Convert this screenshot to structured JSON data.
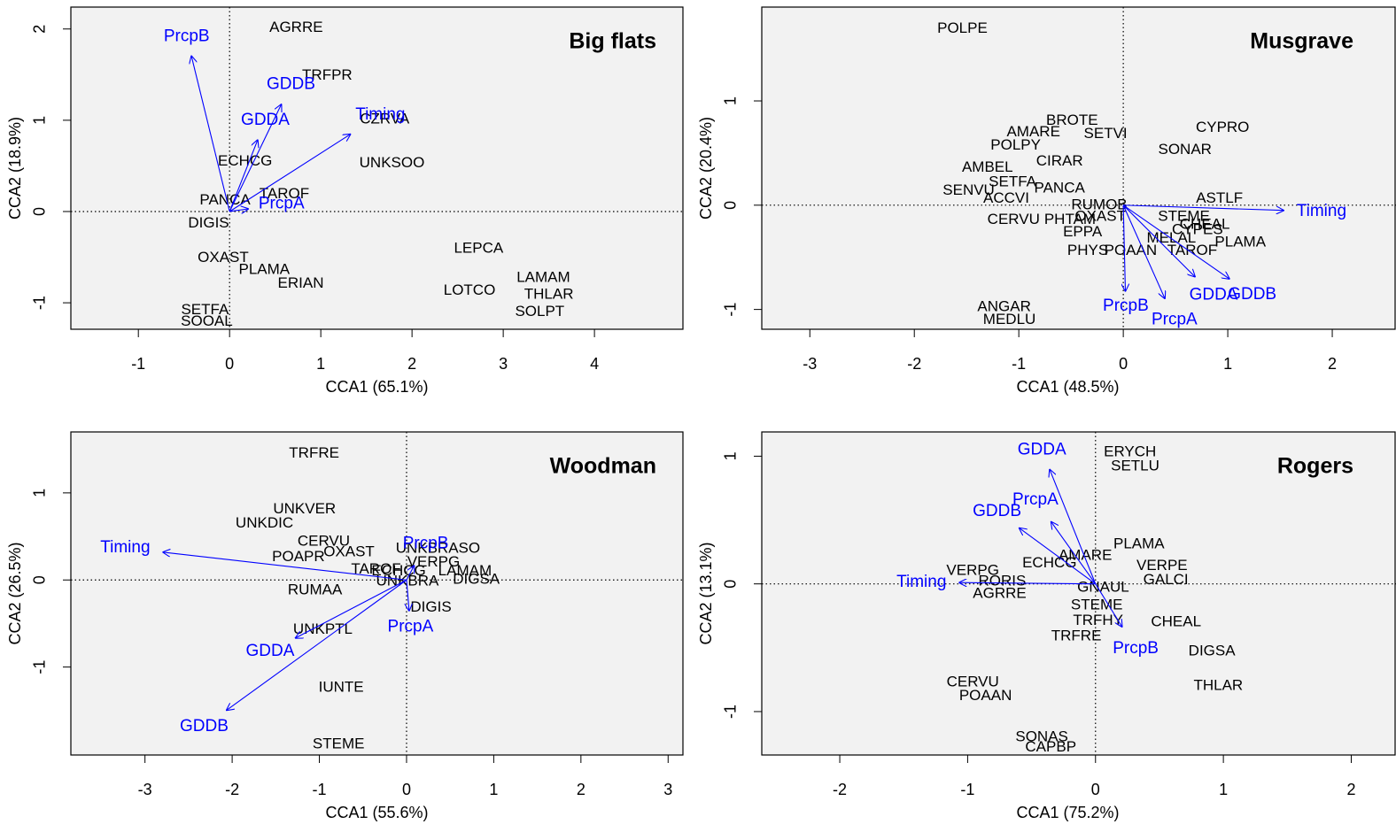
{
  "chart_data": [
    {
      "type": "biplot",
      "title": "Big flats",
      "xlabel": "CCA1 (65.1%)",
      "ylabel": "CCA2 (18.9%)",
      "xlim": [
        -1.74,
        4.97
      ],
      "ylim": [
        -1.29,
        2.24
      ],
      "xticks": [
        -1,
        0,
        1,
        2,
        3,
        4
      ],
      "yticks": [
        -1,
        0,
        1,
        2
      ],
      "point_color": "#000000",
      "vector_color": "#0000ff",
      "points": [
        {
          "label": "AGRRE",
          "x": 0.73,
          "y": 2.01
        },
        {
          "label": "TRFPR",
          "x": 1.07,
          "y": 1.49
        },
        {
          "label": "CZRVA",
          "x": 1.7,
          "y": 1.01
        },
        {
          "label": "UNKSOO",
          "x": 1.78,
          "y": 0.53
        },
        {
          "label": "ECHCG",
          "x": 0.17,
          "y": 0.55
        },
        {
          "label": "TAROF",
          "x": 0.6,
          "y": 0.19
        },
        {
          "label": "PANCA",
          "x": -0.05,
          "y": 0.12
        },
        {
          "label": "DIGIS",
          "x": -0.23,
          "y": -0.13
        },
        {
          "label": "LEPCA",
          "x": 2.73,
          "y": -0.41
        },
        {
          "label": "OXAST",
          "x": -0.07,
          "y": -0.51
        },
        {
          "label": "PLAMA",
          "x": 0.38,
          "y": -0.64
        },
        {
          "label": "ERIAN",
          "x": 0.78,
          "y": -0.79
        },
        {
          "label": "LAMAM",
          "x": 3.44,
          "y": -0.73
        },
        {
          "label": "THLAR",
          "x": 3.5,
          "y": -0.91
        },
        {
          "label": "LOTCO",
          "x": 2.63,
          "y": -0.87
        },
        {
          "label": "SOLPT",
          "x": 3.4,
          "y": -1.1
        },
        {
          "label": "SETFA",
          "x": -0.27,
          "y": -1.08
        },
        {
          "label": "SOOAL",
          "x": -0.25,
          "y": -1.21
        }
      ],
      "vectors": [
        {
          "label": "PrcpB",
          "x": -0.42,
          "y": 1.71
        },
        {
          "label": "GDDB",
          "x": 0.57,
          "y": 1.18
        },
        {
          "label": "GDDA",
          "x": 0.31,
          "y": 0.79
        },
        {
          "label": "Timing",
          "x": 1.33,
          "y": 0.85
        },
        {
          "label": "PrcpA",
          "x": 0.21,
          "y": 0.03
        }
      ]
    },
    {
      "type": "biplot",
      "title": "Musgrave",
      "xlabel": "CCA1 (48.5%)",
      "ylabel": "CCA2 (20.4%)",
      "xlim": [
        -3.46,
        2.61
      ],
      "ylim": [
        -1.19,
        1.9
      ],
      "xticks": [
        -3,
        -2,
        -1,
        0,
        1,
        2
      ],
      "yticks": [
        -1,
        0,
        1
      ],
      "point_color": "#000000",
      "vector_color": "#0000ff",
      "points": [
        {
          "label": "POLPE",
          "x": -1.54,
          "y": 1.69
        },
        {
          "label": "BROTE",
          "x": -0.49,
          "y": 0.81
        },
        {
          "label": "AMARE",
          "x": -0.86,
          "y": 0.7
        },
        {
          "label": "SETVI",
          "x": -0.17,
          "y": 0.68
        },
        {
          "label": "CYPRO",
          "x": 0.95,
          "y": 0.74
        },
        {
          "label": "POLPY",
          "x": -1.03,
          "y": 0.57
        },
        {
          "label": "SONAR",
          "x": 0.59,
          "y": 0.53
        },
        {
          "label": "CIRAR",
          "x": -0.61,
          "y": 0.42
        },
        {
          "label": "AMBEL",
          "x": -1.3,
          "y": 0.36
        },
        {
          "label": "SETFA",
          "x": -1.06,
          "y": 0.22
        },
        {
          "label": "SENVU",
          "x": -1.48,
          "y": 0.14
        },
        {
          "label": "PANCA",
          "x": -0.61,
          "y": 0.16
        },
        {
          "label": "ACCVI",
          "x": -1.12,
          "y": 0.06
        },
        {
          "label": "RUMOB",
          "x": -0.23,
          "y": 0.0
        },
        {
          "label": "ASTLF",
          "x": 0.92,
          "y": 0.06
        },
        {
          "label": "CERVU",
          "x": -1.05,
          "y": -0.14
        },
        {
          "label": "PHTAM",
          "x": -0.51,
          "y": -0.14
        },
        {
          "label": "OXAST",
          "x": -0.22,
          "y": -0.11
        },
        {
          "label": "STEME",
          "x": 0.58,
          "y": -0.11
        },
        {
          "label": "CHEAL",
          "x": 0.78,
          "y": -0.19
        },
        {
          "label": "CYPES",
          "x": 0.71,
          "y": -0.24
        },
        {
          "label": "EPPA",
          "x": -0.39,
          "y": -0.26
        },
        {
          "label": "MELAL",
          "x": 0.46,
          "y": -0.32
        },
        {
          "label": "PLAMA",
          "x": 1.12,
          "y": -0.36
        },
        {
          "label": "PHYS",
          "x": -0.34,
          "y": -0.44
        },
        {
          "label": "POAAN",
          "x": 0.07,
          "y": -0.44
        },
        {
          "label": "TAROF",
          "x": 0.66,
          "y": -0.44
        },
        {
          "label": "ANGAR",
          "x": -1.14,
          "y": -0.98
        },
        {
          "label": "MEDLU",
          "x": -1.09,
          "y": -1.1
        }
      ],
      "vectors": [
        {
          "label": "Timing",
          "x": 1.54,
          "y": -0.05
        },
        {
          "label": "PrcpB",
          "x": 0.02,
          "y": -0.83
        },
        {
          "label": "PrcpA",
          "x": 0.4,
          "y": -0.9
        },
        {
          "label": "GDDA",
          "x": 0.69,
          "y": -0.69
        },
        {
          "label": "GDDB",
          "x": 1.02,
          "y": -0.71
        }
      ]
    },
    {
      "type": "biplot",
      "title": "Woodman",
      "xlabel": "CCA1 (55.6%)",
      "ylabel": "CCA2 (26.5%)",
      "xlim": [
        -3.85,
        3.17
      ],
      "ylim": [
        -2.01,
        1.7
      ],
      "xticks": [
        -3,
        -2,
        -1,
        0,
        1,
        2,
        3
      ],
      "yticks": [
        -1,
        0,
        1
      ],
      "point_color": "#000000",
      "vector_color": "#0000ff",
      "points": [
        {
          "label": "TRFRE",
          "x": -1.06,
          "y": 1.45
        },
        {
          "label": "UNKVER",
          "x": -1.17,
          "y": 0.81
        },
        {
          "label": "UNKDIC",
          "x": -1.63,
          "y": 0.65
        },
        {
          "label": "CERVU",
          "x": -0.95,
          "y": 0.44
        },
        {
          "label": "OXAST",
          "x": -0.66,
          "y": 0.32
        },
        {
          "label": "POAPR",
          "x": -1.24,
          "y": 0.26
        },
        {
          "label": "UNKBRASO",
          "x": 0.36,
          "y": 0.36
        },
        {
          "label": "VERPG",
          "x": 0.31,
          "y": 0.2
        },
        {
          "label": "TAROF",
          "x": -0.35,
          "y": 0.12
        },
        {
          "label": "ECHCG",
          "x": -0.09,
          "y": 0.1
        },
        {
          "label": "LAMAM",
          "x": 0.67,
          "y": 0.1
        },
        {
          "label": "UNKBRA",
          "x": 0.01,
          "y": -0.02
        },
        {
          "label": "DIGSA",
          "x": 0.8,
          "y": 0.0
        },
        {
          "label": "RUMAA",
          "x": -1.05,
          "y": -0.12
        },
        {
          "label": "DIGIS",
          "x": 0.28,
          "y": -0.32
        },
        {
          "label": "UNKPTL",
          "x": -0.96,
          "y": -0.57
        },
        {
          "label": "IUNTE",
          "x": -0.75,
          "y": -1.24
        },
        {
          "label": "STEME",
          "x": -0.78,
          "y": -1.89
        }
      ],
      "vectors": [
        {
          "label": "Timing",
          "x": -2.8,
          "y": 0.32
        },
        {
          "label": "GDDA",
          "x": -1.28,
          "y": -0.67
        },
        {
          "label": "GDDB",
          "x": -2.07,
          "y": -1.5
        },
        {
          "label": "PrcpA",
          "x": 0.03,
          "y": -0.36
        },
        {
          "label": "PrcpB",
          "x": 0.09,
          "y": 0.17
        }
      ]
    },
    {
      "type": "biplot",
      "title": "Rogers",
      "xlabel": "CCA1 (75.2%)",
      "ylabel": "CCA2 (13.1%)",
      "xlim": [
        -2.61,
        2.35
      ],
      "ylim": [
        -1.34,
        1.19
      ],
      "xticks": [
        -2,
        -1,
        0,
        1,
        2
      ],
      "yticks": [
        -1,
        0,
        1
      ],
      "point_color": "#000000",
      "vector_color": "#0000ff",
      "points": [
        {
          "label": "ERYCH",
          "x": 0.27,
          "y": 1.03
        },
        {
          "label": "SETLU",
          "x": 0.31,
          "y": 0.92
        },
        {
          "label": "PLAMA",
          "x": 0.34,
          "y": 0.31
        },
        {
          "label": "AMARE",
          "x": -0.08,
          "y": 0.22
        },
        {
          "label": "VERPE",
          "x": 0.52,
          "y": 0.14
        },
        {
          "label": "ECHCG",
          "x": -0.36,
          "y": 0.16
        },
        {
          "label": "GALCI",
          "x": 0.55,
          "y": 0.03
        },
        {
          "label": "VERPG",
          "x": -0.96,
          "y": 0.1
        },
        {
          "label": "RORIS",
          "x": -0.73,
          "y": 0.02
        },
        {
          "label": "GNAUL",
          "x": 0.06,
          "y": -0.03
        },
        {
          "label": "AGRRE",
          "x": -0.75,
          "y": -0.08
        },
        {
          "label": "STEME",
          "x": 0.01,
          "y": -0.17
        },
        {
          "label": "CHEAL",
          "x": 0.63,
          "y": -0.3
        },
        {
          "label": "TRFHY",
          "x": 0.02,
          "y": -0.29
        },
        {
          "label": "TRFRE",
          "x": -0.15,
          "y": -0.41
        },
        {
          "label": "DIGSA",
          "x": 0.91,
          "y": -0.53
        },
        {
          "label": "THLAR",
          "x": 0.96,
          "y": -0.8
        },
        {
          "label": "CERVU",
          "x": -0.96,
          "y": -0.77
        },
        {
          "label": "POAAN",
          "x": -0.86,
          "y": -0.88
        },
        {
          "label": "SONAS",
          "x": -0.42,
          "y": -1.2
        },
        {
          "label": "CAPBP",
          "x": -0.35,
          "y": -1.28
        }
      ],
      "vectors": [
        {
          "label": "GDDA",
          "x": -0.36,
          "y": 0.9
        },
        {
          "label": "PrcpA",
          "x": -0.35,
          "y": 0.49
        },
        {
          "label": "GDDB",
          "x": -0.6,
          "y": 0.44
        },
        {
          "label": "Timing",
          "x": -1.07,
          "y": 0.01
        },
        {
          "label": "PrcpB",
          "x": 0.21,
          "y": -0.34
        }
      ]
    }
  ]
}
